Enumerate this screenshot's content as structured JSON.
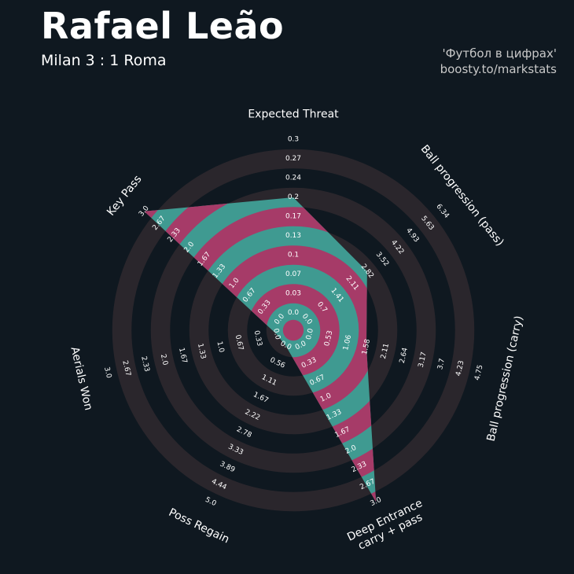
{
  "header": {
    "title": "Rafael Leão",
    "subtitle": "Milan 3 : 1 Roma",
    "credit_line1": "'Футбол в цифрах'",
    "credit_line2": "boosty.to/markstats"
  },
  "colors": {
    "background": "#0f1820",
    "ring_dark": "#2a262c",
    "fill_teal": "#3f9a91",
    "fill_pink": "#a63b68",
    "text": "#ffffff",
    "credit_text": "#c8c8c8"
  },
  "chart_data": {
    "type": "radar",
    "title": "Rafael Leão",
    "subtitle": "Milan 3 : 1 Roma",
    "params": [
      {
        "label": "Expected Threat",
        "min": 0.0,
        "max": 0.3,
        "value": 0.2,
        "ticks": [
          "0.0",
          "0.03",
          "0.07",
          "0.1",
          "0.13",
          "0.17",
          "0.2",
          "0.24",
          "0.27",
          "0.3"
        ]
      },
      {
        "label": "Ball progression (pass)",
        "min": 0.0,
        "max": 6.34,
        "value": 2.82,
        "ticks": [
          "0.0",
          "0.7",
          "1.41",
          "2.11",
          "2.82",
          "3.52",
          "4.22",
          "4.93",
          "5.63",
          "6.34"
        ]
      },
      {
        "label": "Ball progression (carry)",
        "min": 0.0,
        "max": 4.75,
        "value": 1.58,
        "ticks": [
          "0.0",
          "0.53",
          "1.06",
          "1.58",
          "2.11",
          "2.64",
          "3.17",
          "3.7",
          "4.23",
          "4.75"
        ]
      },
      {
        "label": "Deep Entrance\ncarry + pass",
        "min": 0.0,
        "max": 3.0,
        "value": 3.0,
        "ticks": [
          "0.0",
          "0.33",
          "0.67",
          "1.0",
          "1.33",
          "1.67",
          "2.0",
          "2.33",
          "2.67",
          "3.0"
        ]
      },
      {
        "label": "Poss Regain",
        "min": 0.0,
        "max": 5.0,
        "value": 0.0,
        "ticks": [
          "0.0",
          "0.56",
          "1.11",
          "1.67",
          "2.22",
          "2.78",
          "3.33",
          "3.89",
          "4.44",
          "5.0"
        ]
      },
      {
        "label": "Aerials Won",
        "min": 0.0,
        "max": 3.0,
        "value": 0.0,
        "ticks": [
          "0.0",
          "0.33",
          "0.67",
          "1.0",
          "1.33",
          "1.67",
          "2.0",
          "2.33",
          "2.67",
          "3.0"
        ]
      },
      {
        "label": "Key Pass",
        "min": 0.0,
        "max": 3.0,
        "value": 3.0,
        "ticks": [
          "0.0",
          "0.33",
          "0.67",
          "1.0",
          "1.33",
          "1.67",
          "2.0",
          "2.33",
          "2.67",
          "3.0"
        ]
      }
    ]
  }
}
